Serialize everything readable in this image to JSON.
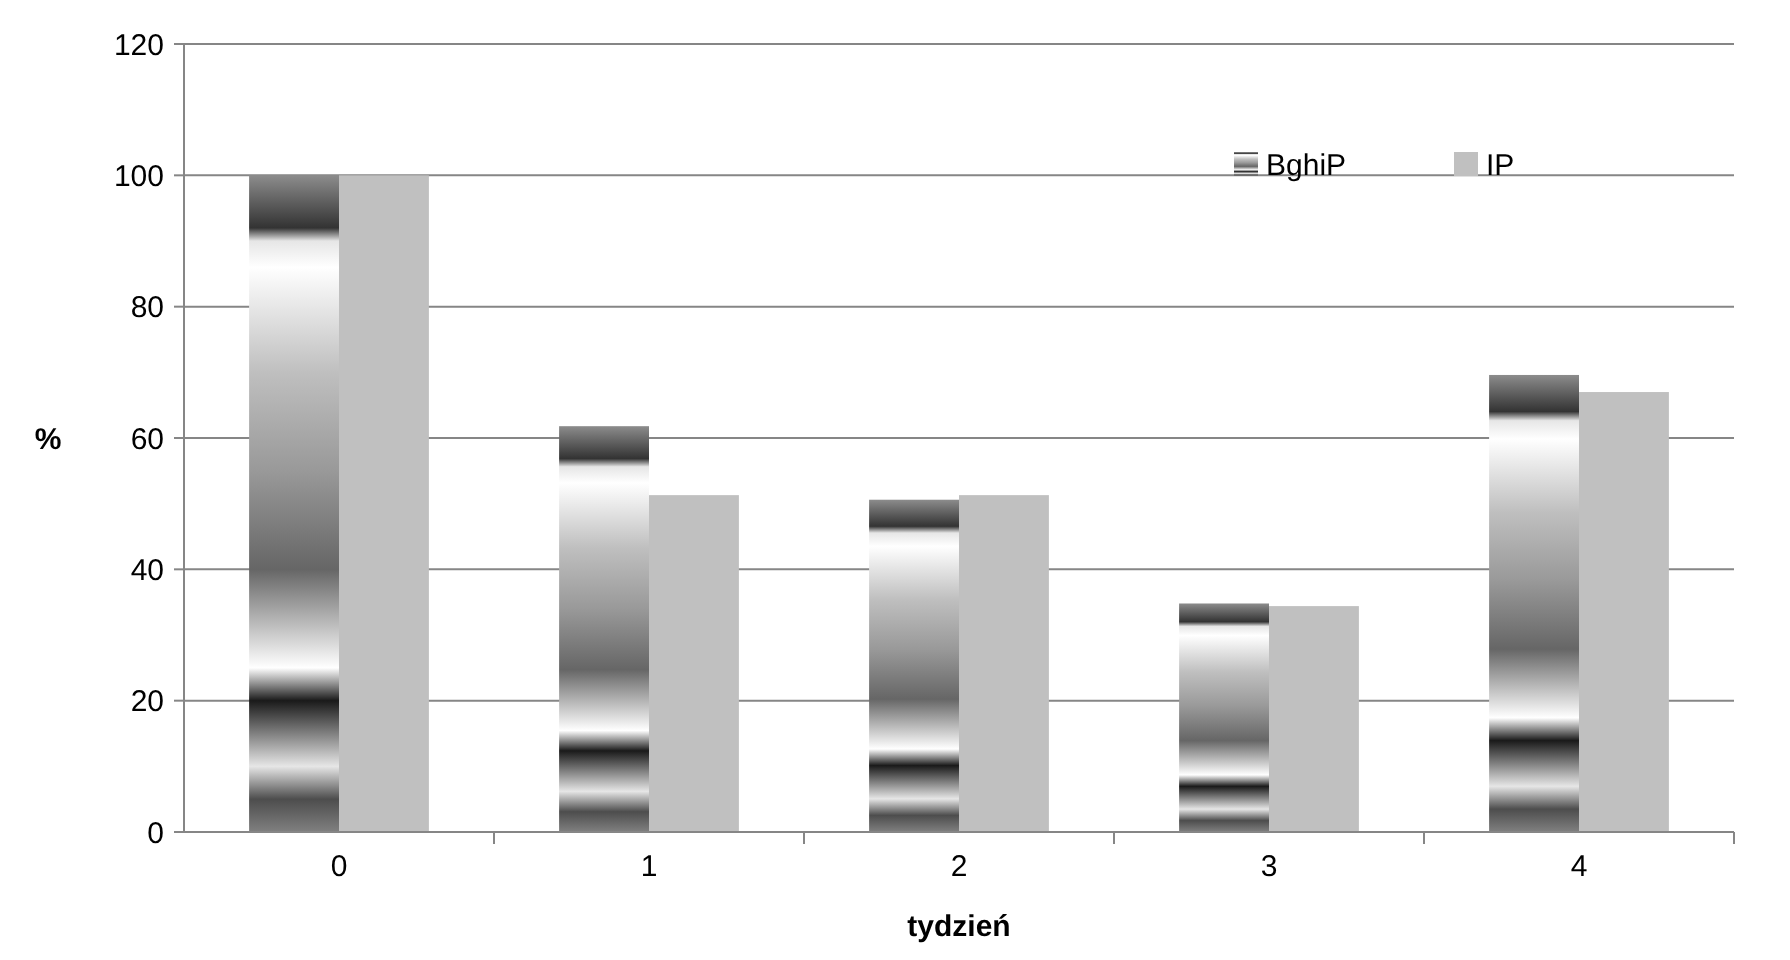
{
  "chart_data": {
    "type": "bar",
    "xlabel": "tydzień",
    "ylabel": "%",
    "categories": [
      "0",
      "1",
      "2",
      "3",
      "4"
    ],
    "series": [
      {
        "name": "BghiP",
        "color": "#808080",
        "values": [
          100,
          61.8,
          50.6,
          34.8,
          69.6
        ]
      },
      {
        "name": "IP",
        "color": "#c0c0c0",
        "values": [
          100,
          51.3,
          51.3,
          34.4,
          67
        ]
      }
    ],
    "ylim": [
      0,
      120
    ],
    "yticks": [
      0,
      20,
      40,
      60,
      80,
      100,
      120
    ],
    "grid": "y",
    "legend": "top right"
  }
}
